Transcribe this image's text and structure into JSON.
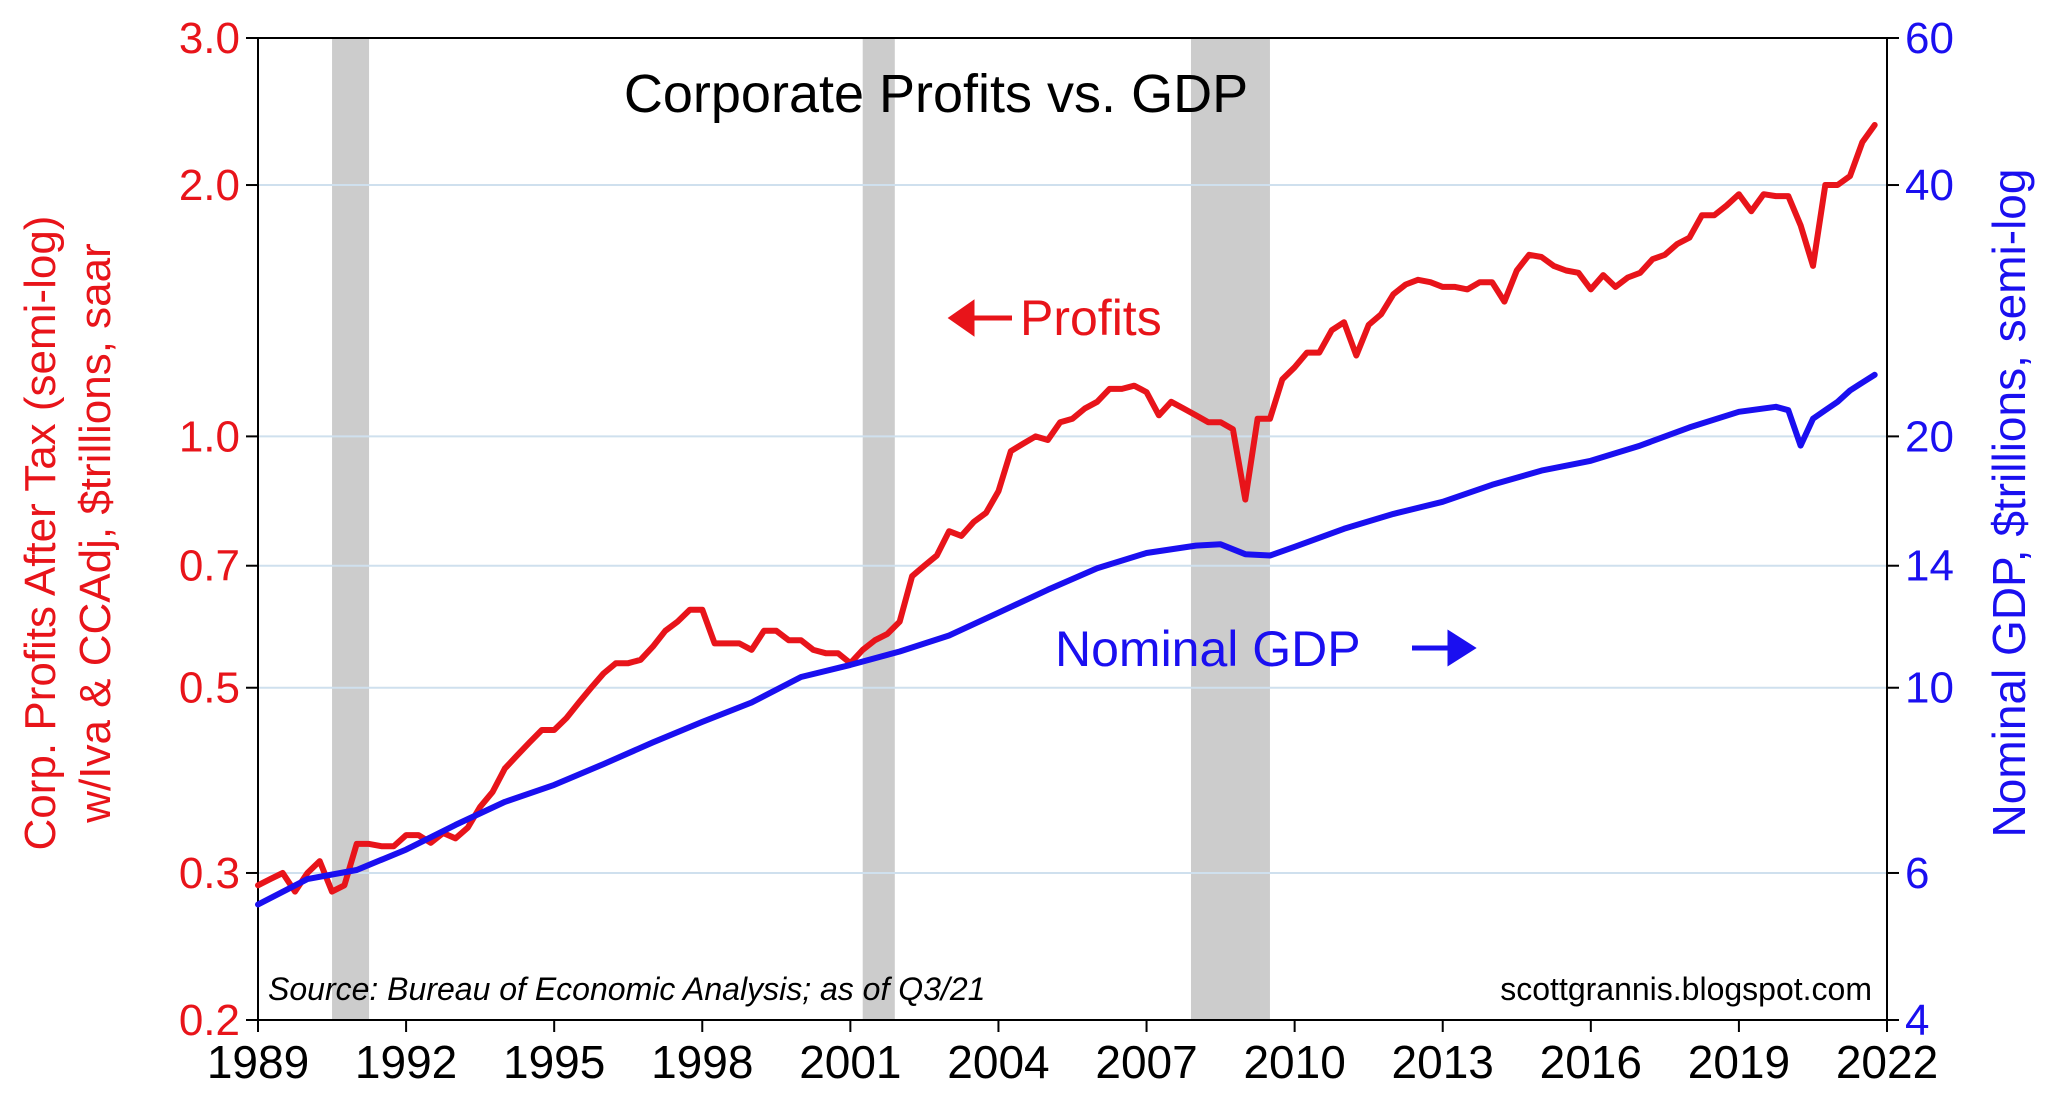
{
  "chart_data": {
    "type": "line",
    "title": "Corporate Profits vs. GDP",
    "ylabel_left_line1": "Corp. Profits After Tax (semi-log)",
    "ylabel_left_line2": "w/Iva & CCAdj, $trillions, saar",
    "ylabel_right": "Nominal GDP, $trillions, semi-log",
    "annotation_profits": "Profits",
    "annotation_gdp": "Nominal GDP",
    "source": "Source: Bureau of Economic Analysis; as of Q3/21",
    "credit": "scottgrannis.blogspot.com",
    "x_range": [
      1989,
      2022
    ],
    "x_ticks": [
      "1989",
      "1992",
      "1995",
      "1998",
      "2001",
      "2004",
      "2007",
      "2010",
      "2013",
      "2016",
      "2019",
      "2022"
    ],
    "y_left": {
      "scale": "log",
      "range": [
        0.2,
        3.0
      ],
      "ticks": [
        "0.2",
        "0.3",
        "0.5",
        "0.7",
        "1.0",
        "2.0",
        "3.0"
      ]
    },
    "y_right": {
      "scale": "log",
      "range": [
        4,
        60
      ],
      "ticks": [
        "4",
        "6",
        "10",
        "14",
        "20",
        "40",
        "60"
      ]
    },
    "grid": "horizontal",
    "recessions": [
      [
        1990.5,
        1991.25
      ],
      [
        2001.25,
        2001.9
      ],
      [
        2007.9,
        2009.5
      ]
    ],
    "colors": {
      "profits": "#e8141a",
      "gdp": "#1a0ff0",
      "recession": "#cccccc",
      "grid": "#cfe0ee"
    },
    "series": [
      {
        "name": "Profits",
        "axis": "left",
        "x": [
          1989.0,
          1989.25,
          1989.5,
          1989.75,
          1990.0,
          1990.25,
          1990.5,
          1990.75,
          1991.0,
          1991.25,
          1991.5,
          1991.75,
          1992.0,
          1992.25,
          1992.5,
          1992.75,
          1993.0,
          1993.25,
          1993.5,
          1993.75,
          1994.0,
          1994.25,
          1994.5,
          1994.75,
          1995.0,
          1995.25,
          1995.5,
          1995.75,
          1996.0,
          1996.25,
          1996.5,
          1996.75,
          1997.0,
          1997.25,
          1997.5,
          1997.75,
          1998.0,
          1998.25,
          1998.5,
          1998.75,
          1999.0,
          1999.25,
          1999.5,
          1999.75,
          2000.0,
          2000.25,
          2000.5,
          2000.75,
          2001.0,
          2001.25,
          2001.5,
          2001.75,
          2002.0,
          2002.25,
          2002.5,
          2002.75,
          2003.0,
          2003.25,
          2003.5,
          2003.75,
          2004.0,
          2004.25,
          2004.5,
          2004.75,
          2005.0,
          2005.25,
          2005.5,
          2005.75,
          2006.0,
          2006.25,
          2006.5,
          2006.75,
          2007.0,
          2007.25,
          2007.5,
          2007.75,
          2008.0,
          2008.25,
          2008.5,
          2008.75,
          2009.0,
          2009.25,
          2009.5,
          2009.75,
          2010.0,
          2010.25,
          2010.5,
          2010.75,
          2011.0,
          2011.25,
          2011.5,
          2011.75,
          2012.0,
          2012.25,
          2012.5,
          2012.75,
          2013.0,
          2013.25,
          2013.5,
          2013.75,
          2014.0,
          2014.25,
          2014.5,
          2014.75,
          2015.0,
          2015.25,
          2015.5,
          2015.75,
          2016.0,
          2016.25,
          2016.5,
          2016.75,
          2017.0,
          2017.25,
          2017.5,
          2017.75,
          2018.0,
          2018.25,
          2018.5,
          2018.75,
          2019.0,
          2019.25,
          2019.5,
          2019.75,
          2020.0,
          2020.25,
          2020.5,
          2020.75,
          2021.0,
          2021.25,
          2021.5,
          2021.75
        ],
        "values": [
          0.29,
          0.295,
          0.3,
          0.285,
          0.3,
          0.31,
          0.285,
          0.29,
          0.325,
          0.325,
          0.323,
          0.323,
          0.333,
          0.333,
          0.326,
          0.335,
          0.33,
          0.34,
          0.36,
          0.375,
          0.4,
          0.415,
          0.43,
          0.445,
          0.445,
          0.46,
          0.48,
          0.5,
          0.52,
          0.535,
          0.535,
          0.54,
          0.56,
          0.585,
          0.6,
          0.62,
          0.62,
          0.565,
          0.565,
          0.565,
          0.555,
          0.585,
          0.585,
          0.57,
          0.57,
          0.555,
          0.55,
          0.55,
          0.535,
          0.555,
          0.57,
          0.58,
          0.6,
          0.68,
          0.7,
          0.72,
          0.77,
          0.76,
          0.79,
          0.81,
          0.86,
          0.96,
          0.98,
          1.0,
          0.99,
          1.04,
          1.05,
          1.08,
          1.1,
          1.14,
          1.14,
          1.15,
          1.13,
          1.06,
          1.1,
          1.08,
          1.06,
          1.04,
          1.04,
          1.02,
          0.84,
          1.05,
          1.05,
          1.17,
          1.21,
          1.26,
          1.26,
          1.34,
          1.37,
          1.25,
          1.36,
          1.4,
          1.48,
          1.52,
          1.54,
          1.53,
          1.51,
          1.51,
          1.5,
          1.53,
          1.53,
          1.45,
          1.58,
          1.65,
          1.64,
          1.6,
          1.58,
          1.57,
          1.5,
          1.56,
          1.51,
          1.55,
          1.57,
          1.63,
          1.65,
          1.7,
          1.73,
          1.84,
          1.84,
          1.89,
          1.95,
          1.86,
          1.95,
          1.94,
          1.94,
          1.79,
          1.6,
          2.0,
          2.0,
          2.05,
          2.25,
          2.36
        ]
      },
      {
        "name": "Nominal GDP",
        "axis": "right",
        "x": [
          1989.0,
          1990.0,
          1991.0,
          1992.0,
          1993.0,
          1994.0,
          1995.0,
          1996.0,
          1997.0,
          1998.0,
          1999.0,
          2000.0,
          2001.0,
          2002.0,
          2003.0,
          2004.0,
          2005.0,
          2006.0,
          2007.0,
          2008.0,
          2008.5,
          2009.0,
          2009.5,
          2010.0,
          2011.0,
          2012.0,
          2013.0,
          2014.0,
          2015.0,
          2016.0,
          2017.0,
          2018.0,
          2019.0,
          2019.75,
          2020.0,
          2020.25,
          2020.5,
          2020.75,
          2021.0,
          2021.25,
          2021.5,
          2021.75
        ],
        "values": [
          5.5,
          5.9,
          6.05,
          6.4,
          6.85,
          7.3,
          7.65,
          8.1,
          8.6,
          9.1,
          9.6,
          10.3,
          10.65,
          11.05,
          11.55,
          12.3,
          13.1,
          13.9,
          14.5,
          14.8,
          14.85,
          14.45,
          14.4,
          14.75,
          15.5,
          16.15,
          16.7,
          17.5,
          18.2,
          18.7,
          19.5,
          20.5,
          21.4,
          21.7,
          21.5,
          19.5,
          21.0,
          21.5,
          22.0,
          22.7,
          23.2,
          23.7
        ]
      }
    ]
  }
}
